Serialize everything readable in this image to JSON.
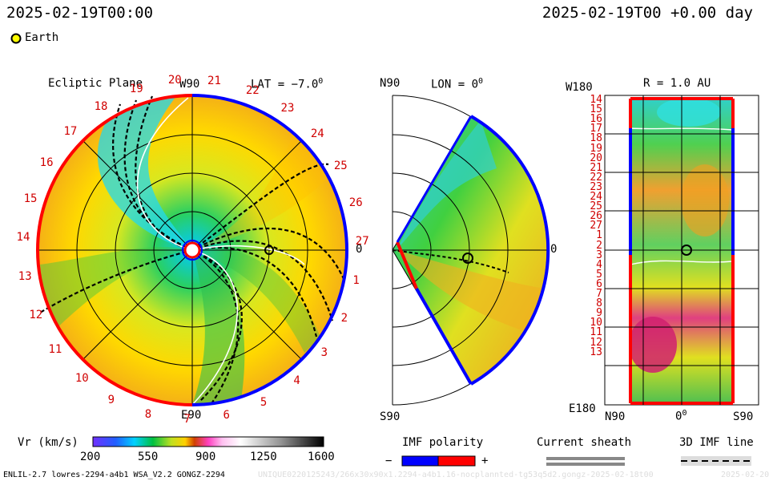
{
  "header": {
    "datetime_left": "2025-02-19T00:00",
    "datetime_right": "2025-02-19T00 +0.00 day",
    "legend_earth": "Earth"
  },
  "ecliptic": {
    "title": "Ecliptic Plane",
    "lat": "LAT = −7.0",
    "deg": "0",
    "top_label": "W90",
    "bottom_label": "E90",
    "right_label": "0",
    "carrington_ticks": [
      "20",
      "21",
      "22",
      "23",
      "24",
      "25",
      "26",
      "27",
      "1",
      "2",
      "3",
      "4",
      "5",
      "6",
      "7",
      "8",
      "9",
      "10",
      "11",
      "12",
      "13",
      "14",
      "15",
      "16",
      "17",
      "18",
      "19"
    ]
  },
  "meridional": {
    "top_label": "N90",
    "bottom_label": "S90",
    "lon": "LON = 0",
    "deg": "0",
    "right_label": "0"
  },
  "radial": {
    "top_left_label": "W180",
    "bottom_left_label": "E180",
    "title": "R = 1.0 AU",
    "rows": [
      "14",
      "15",
      "16",
      "17",
      "18",
      "19",
      "20",
      "21",
      "22",
      "23",
      "24",
      "25",
      "26",
      "27",
      "1",
      "2",
      "3",
      "4",
      "5",
      "6",
      "7",
      "8",
      "9",
      "10",
      "11",
      "12",
      "13"
    ],
    "x_labels": [
      "N90",
      "0",
      "S90"
    ],
    "deg": "0"
  },
  "colorbar": {
    "label": "Vr (km/s)",
    "ticks": [
      "200",
      "550",
      "900",
      "1250",
      "1600"
    ]
  },
  "imf": {
    "label": "IMF polarity",
    "minus": "−",
    "plus": "+",
    "neg_color": "#0000ff",
    "pos_color": "#ff0000"
  },
  "sheath": {
    "label": "Current sheath"
  },
  "line3d": {
    "label": "3D IMF line"
  },
  "footer": {
    "model": "ENLIL-2.7 lowres-2294-a4b1 WSA_V2.2 GONGZ-2294",
    "run_id": "UNIQUE0220125243/266x30x90x1.2294-a4b1.16-nocplannted-tg53q5d2.gongz-2025-02-18t00",
    "date_tail": "2025-02-20"
  },
  "colors": {
    "blue": "#0000ff",
    "red": "#ff0000",
    "earth": "#ffff00"
  }
}
